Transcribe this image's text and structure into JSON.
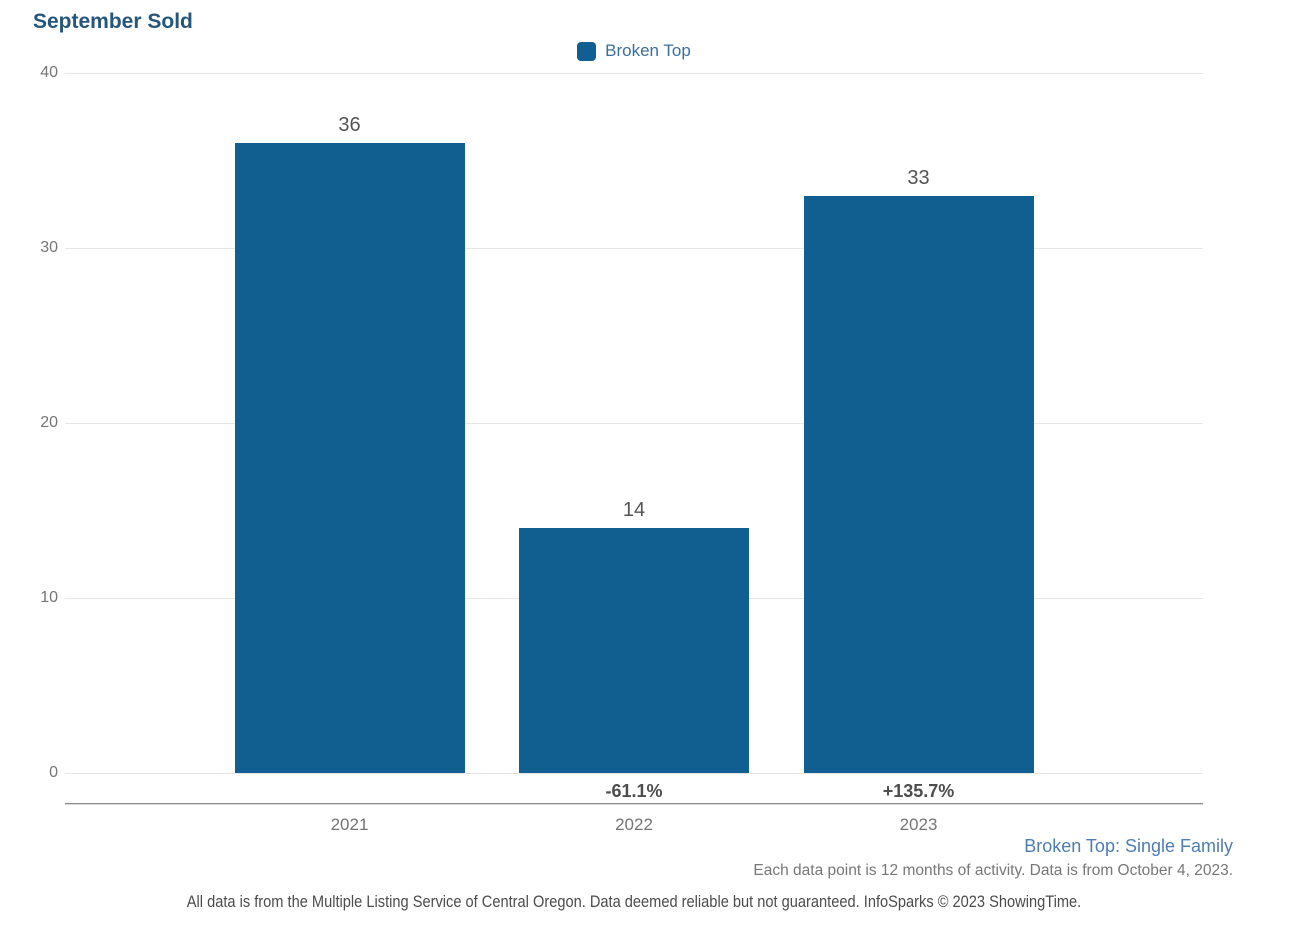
{
  "title": "September Sold",
  "legend": {
    "label": "Broken Top",
    "swatch_color": "#105F90"
  },
  "chart_data": {
    "type": "bar",
    "title": "September Sold",
    "categories": [
      "2021",
      "2022",
      "2023"
    ],
    "series": [
      {
        "name": "Broken Top",
        "values": [
          36,
          14,
          33
        ]
      }
    ],
    "value_labels": [
      "36",
      "14",
      "33"
    ],
    "pct_change_labels": [
      "",
      "-61.1%",
      "+135.7%"
    ],
    "yticks": [
      0,
      10,
      20,
      30,
      40
    ],
    "ylim": [
      0,
      40
    ],
    "xlabel": "",
    "ylabel": "",
    "grid": true,
    "legend_position": "top-center",
    "bar_color": "#105F90"
  },
  "colors": {
    "bar": "#105F90",
    "title_text": "#26577B",
    "legend_text": "#3B6E9F",
    "gridline": "#E6E6E6",
    "axis_line": "#8A8A8A",
    "tick_text": "#757575",
    "value_text": "#545454",
    "pct_text": "#4D4D4D",
    "series_note_text": "#4E7DB2"
  },
  "footer": {
    "series_note": "Broken Top: Single Family",
    "data_note": "Each data point is 12 months of activity. Data is from October 4, 2023.",
    "disclaimer": "All data is from the Multiple Listing Service of Central Oregon. Data deemed reliable but not guaranteed. InfoSparks © 2023 ShowingTime."
  }
}
